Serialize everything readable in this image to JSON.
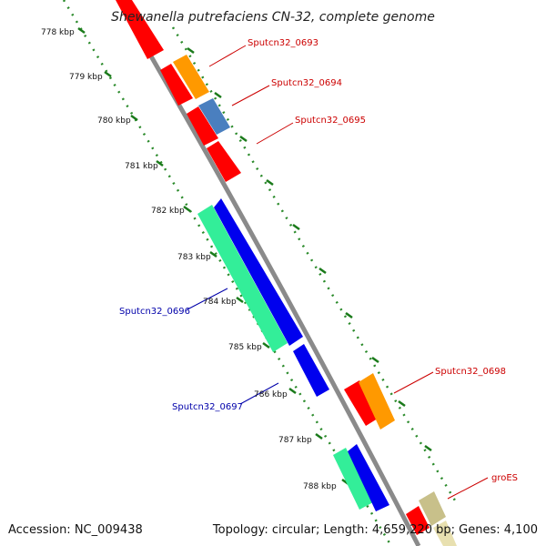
{
  "title": "Shewanella putrefaciens CN-32, complete genome",
  "accession": "Accession: NC_009438",
  "summary": "Topology: circular; Length: 4,659,220 bp; Genes: 4,100",
  "colors": {
    "backbone": "#8a8a8a",
    "tick": "#2a8a2a",
    "red": "#ff0000",
    "orange": "#ff9900",
    "steel": "#4a7fbf",
    "teal": "#33ee99",
    "blue": "#0000ee",
    "olive": "#c8c08a",
    "label_red": "#cc0000",
    "label_blue": "#0000aa"
  },
  "ticks": [
    "778 kbp",
    "779 kbp",
    "780 kbp",
    "781 kbp",
    "782 kbp",
    "783 kbp",
    "784 kbp",
    "785 kbp",
    "786 kbp",
    "787 kbp",
    "788 kbp"
  ],
  "gene_labels": [
    {
      "name": "Sputcn32_0693",
      "color": "label_red"
    },
    {
      "name": "Sputcn32_0694",
      "color": "label_red"
    },
    {
      "name": "Sputcn32_0695",
      "color": "label_red"
    },
    {
      "name": "Sputcn32_0696",
      "color": "label_blue"
    },
    {
      "name": "Sputcn32_0697",
      "color": "label_blue"
    },
    {
      "name": "Sputcn32_0698",
      "color": "label_red"
    },
    {
      "name": "groES",
      "color": "label_red"
    }
  ]
}
